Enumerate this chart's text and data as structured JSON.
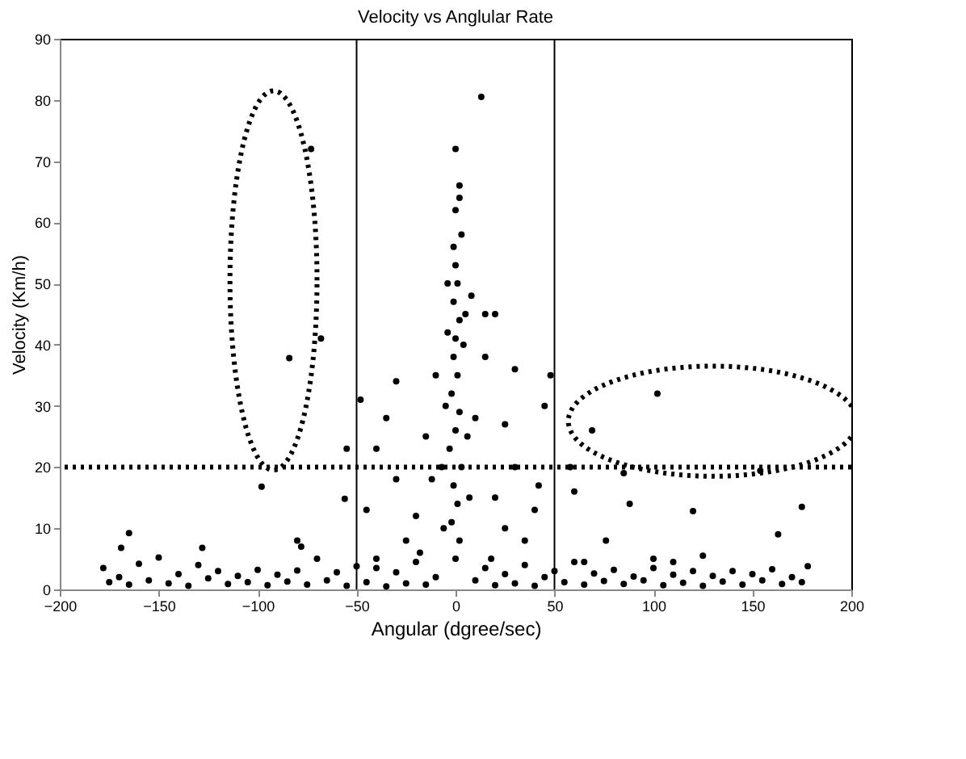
{
  "chart_data": {
    "type": "scatter",
    "title": "Velocity vs Anglular Rate",
    "xlabel": "Angular (dgree/sec)",
    "ylabel": "Velocity (Km/h)",
    "xlim": [
      -200,
      200
    ],
    "xticks": [
      -200,
      -150,
      -100,
      -50,
      0,
      50,
      100,
      150,
      200
    ],
    "ylim": [
      0,
      90
    ],
    "yticks": [
      0,
      10,
      20,
      30,
      40,
      50,
      60,
      70,
      80,
      90
    ],
    "grid": false,
    "marker": "circle",
    "ref_lines": [
      {
        "axis": "x",
        "value": -50,
        "color": "#000000",
        "line_style": "solid"
      },
      {
        "axis": "x",
        "value": 50,
        "color": "#000000",
        "line_style": "solid"
      },
      {
        "axis": "y",
        "value": 20,
        "color": "#000000",
        "line_style": "dotted"
      }
    ],
    "series": [
      {
        "color": "#000000",
        "x": [
          -178,
          -175,
          -170,
          -165,
          -160,
          -155,
          -150,
          -145,
          -140,
          -135,
          -130,
          -125,
          -120,
          -115,
          -110,
          -105,
          -100,
          -95,
          -90,
          -85,
          -80,
          -75,
          -70,
          -65,
          -60,
          -55,
          -50,
          -45,
          -40,
          -35,
          -30,
          -25,
          -20,
          -15,
          -10,
          10,
          15,
          20,
          25,
          30,
          35,
          40,
          45,
          50,
          55,
          60,
          65,
          70,
          75,
          80,
          85,
          90,
          95,
          100,
          105,
          110,
          115,
          120,
          125,
          130,
          135,
          140,
          145,
          150,
          155,
          160,
          165,
          170,
          175,
          178,
          0,
          2,
          -2,
          1,
          -1,
          3,
          -3,
          0,
          2,
          -2,
          1,
          -1,
          0,
          2,
          -1,
          1,
          0,
          -1,
          3,
          0,
          2,
          2,
          0,
          13,
          -4,
          4,
          -5,
          6,
          -7,
          7,
          -6,
          5,
          -4,
          8,
          15,
          20,
          -20,
          -25,
          -30,
          -35,
          -40,
          -45,
          -48,
          -40,
          -30,
          -15,
          -10,
          20,
          25,
          30,
          35,
          40,
          45,
          48,
          42,
          30,
          25,
          15,
          10,
          -12,
          18,
          -18,
          -165,
          -169,
          -128,
          -84,
          -68,
          -98,
          -56,
          -55,
          -73,
          -80,
          -78,
          102,
          69,
          154,
          120,
          175,
          88,
          76,
          163,
          60,
          58,
          85,
          125,
          100,
          65,
          110
        ],
        "values": [
          3.5,
          1.2,
          2,
          0.8,
          4.2,
          1.5,
          5.2,
          1,
          2.5,
          0.6,
          4,
          1.8,
          3,
          0.9,
          2.2,
          1.2,
          3.2,
          0.7,
          2.4,
          1.3,
          3.1,
          0.8,
          5,
          1.5,
          2.8,
          0.6,
          3.8,
          1.2,
          3.5,
          0.5,
          2.8,
          1,
          4.5,
          0.8,
          2,
          1.5,
          3.5,
          0.7,
          2.5,
          1,
          4,
          0.6,
          2,
          3,
          1.2,
          4.5,
          0.8,
          2.6,
          1.4,
          3.2,
          0.9,
          2.1,
          1.5,
          3.5,
          0.7,
          2.4,
          1.1,
          3,
          0.6,
          2.2,
          1.3,
          3,
          0.8,
          2.5,
          1.5,
          3.3,
          0.9,
          2,
          1.2,
          3.8,
          5,
          8,
          11,
          14,
          17,
          20,
          23,
          26,
          29,
          32,
          35,
          38,
          41,
          44,
          47,
          50,
          53,
          56,
          58,
          62,
          64,
          66,
          72,
          80.5,
          50,
          40,
          30,
          25,
          20,
          15,
          10,
          45,
          42,
          48,
          45,
          45,
          12,
          8,
          18,
          28,
          23,
          13,
          31,
          5,
          34,
          25,
          35,
          15,
          10,
          20,
          8,
          13,
          30,
          35,
          17,
          36,
          27,
          38,
          28,
          18,
          5,
          6,
          9.2,
          6.8,
          6.8,
          37.8,
          41,
          16.8,
          14.8,
          23,
          72,
          8,
          7,
          32,
          26,
          19.4,
          12.8,
          13.5,
          14,
          8,
          9,
          16,
          20,
          19,
          5.5,
          5,
          4.5,
          4.5
        ]
      }
    ]
  }
}
